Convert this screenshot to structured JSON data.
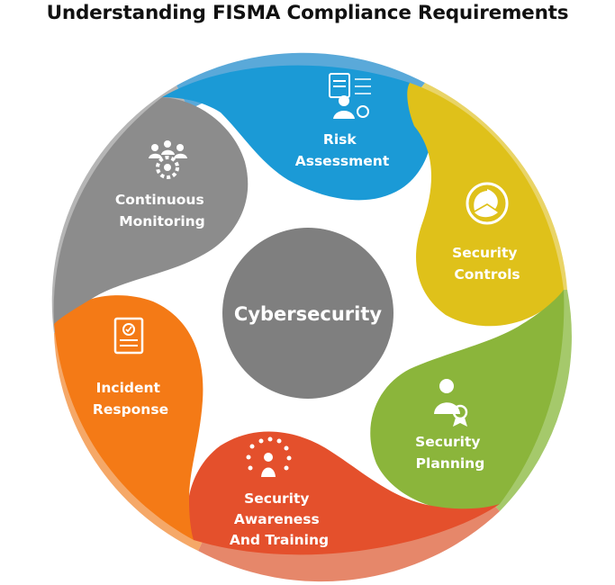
{
  "title": "Understanding FISMA Compliance Requirements",
  "center": {
    "label": "Cybersecurity",
    "color": "#7f7f7f"
  },
  "segments": [
    {
      "lines": [
        "Risk",
        "Assessment"
      ],
      "color": "#1b9ad6",
      "icon": "risk-assessment-icon"
    },
    {
      "lines": [
        "Security",
        "Controls"
      ],
      "color": "#dfc11a",
      "icon": "security-controls-icon"
    },
    {
      "lines": [
        "Security",
        "Planning"
      ],
      "color": "#8bb53b",
      "icon": "security-planning-icon"
    },
    {
      "lines": [
        "Security",
        "Awareness",
        "And Training"
      ],
      "color": "#e4502c",
      "icon": "awareness-training-icon"
    },
    {
      "lines": [
        "Incident",
        "Response"
      ],
      "color": "#f47a16",
      "icon": "incident-response-icon"
    },
    {
      "lines": [
        "Continuous",
        "Monitoring"
      ],
      "color": "#8c8c8c",
      "icon": "continuous-monitoring-icon"
    }
  ]
}
